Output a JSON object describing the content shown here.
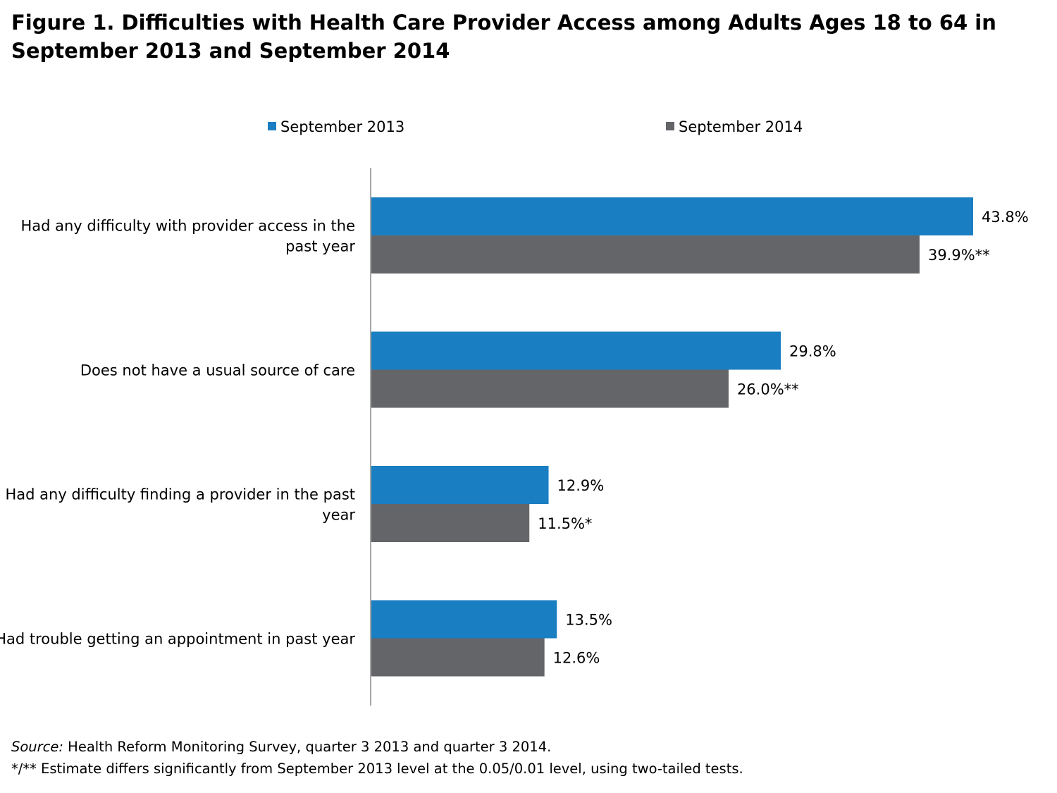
{
  "title_lines": [
    "Figure 1. Difficulties with Health Care Provider Access among Adults Ages 18 to 64 in",
    "September 2013 and September 2014"
  ],
  "footnotes": {
    "source_label": "Source:",
    "source_text": " Health Reform Monitoring Survey, quarter 3 2013 and quarter 3 2014.",
    "significance": "*/** Estimate differs significantly from September 2013 level at the 0.05/0.01 level, using two-tailed tests."
  },
  "colors": {
    "september_2013": "#1a7ec2",
    "september_2014": "#646569",
    "axis": "#888888"
  },
  "chart_data": {
    "type": "bar",
    "orientation": "horizontal",
    "legend_position": "top",
    "grid": false,
    "xlim": [
      0,
      50
    ],
    "categories": [
      [
        "Had any difficulty with provider access in the",
        "past year"
      ],
      [
        "Does not have a usual source of care"
      ],
      [
        "Had any difficulty finding a provider in the past",
        "year"
      ],
      [
        "Had trouble getting an appointment in past year"
      ]
    ],
    "series": [
      {
        "name": "September 2013",
        "values": [
          43.8,
          29.8,
          12.9,
          13.5
        ],
        "labels": [
          "43.8%",
          "29.8%",
          "12.9%",
          "13.5%"
        ]
      },
      {
        "name": "September 2014",
        "values": [
          39.9,
          26.0,
          11.5,
          12.6
        ],
        "labels": [
          "39.9%**",
          "26.0%**",
          "11.5%*",
          "12.6%"
        ]
      }
    ]
  }
}
